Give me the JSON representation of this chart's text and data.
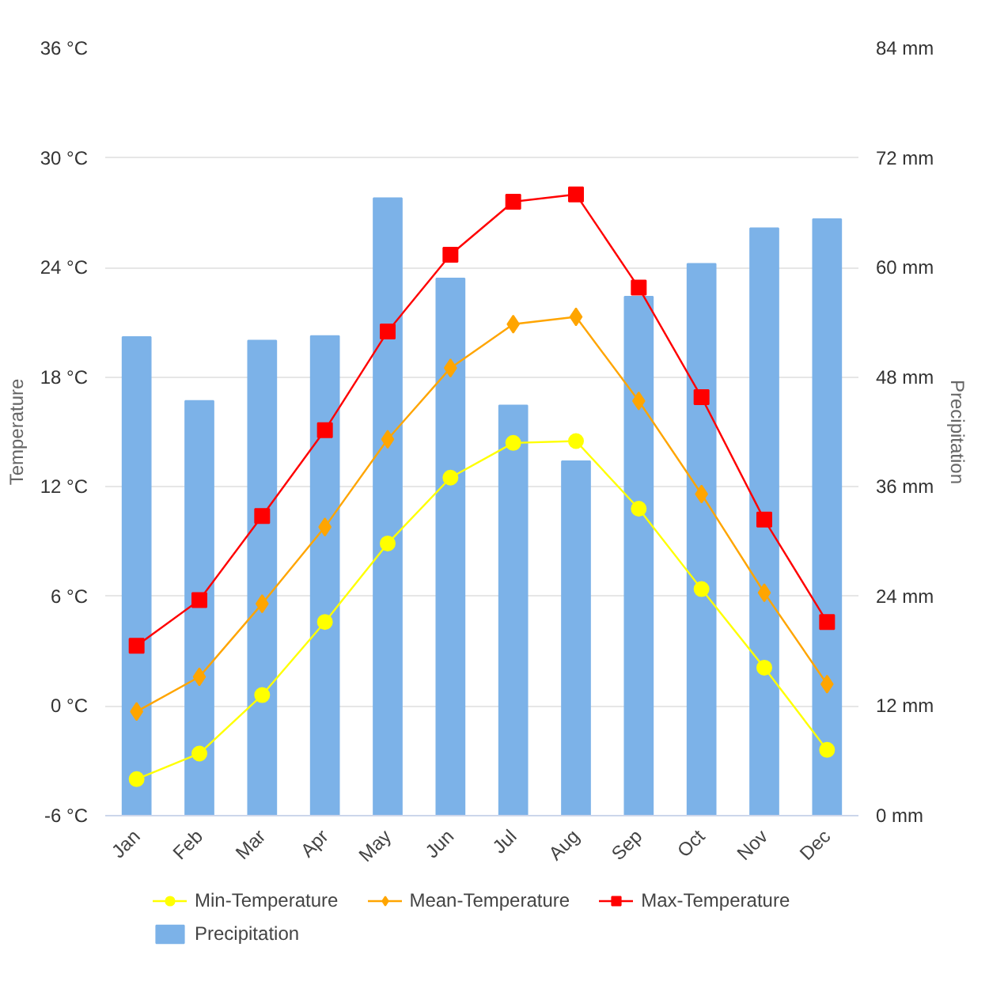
{
  "chart_data": {
    "type": "line",
    "categories": [
      "Jan",
      "Feb",
      "Mar",
      "Apr",
      "May",
      "Jun",
      "Jul",
      "Aug",
      "Sep",
      "Oct",
      "Nov",
      "Dec"
    ],
    "ylabel": "Temperature",
    "y2label": "Precipitation",
    "ylim": [
      -6,
      36
    ],
    "yticks": [
      {
        "value": -6,
        "label": "-6 °C"
      },
      {
        "value": 0,
        "label": "0 °C"
      },
      {
        "value": 6,
        "label": "6 °C"
      },
      {
        "value": 12,
        "label": "12 °C"
      },
      {
        "value": 18,
        "label": "18 °C"
      },
      {
        "value": 24,
        "label": "24 °C"
      },
      {
        "value": 30,
        "label": "30 °C"
      },
      {
        "value": 36,
        "label": "36 °C"
      }
    ],
    "y2lim": [
      0,
      84
    ],
    "y2ticks": [
      {
        "value": 0,
        "label": "0 mm"
      },
      {
        "value": 12,
        "label": "12 mm"
      },
      {
        "value": 24,
        "label": "24 mm"
      },
      {
        "value": 36,
        "label": "36 mm"
      },
      {
        "value": 48,
        "label": "48 mm"
      },
      {
        "value": 60,
        "label": "60 mm"
      },
      {
        "value": 72,
        "label": "72 mm"
      },
      {
        "value": 84,
        "label": "84 mm"
      }
    ],
    "grid": "y",
    "legend": "bottom",
    "line_style": "solid",
    "series": [
      {
        "name": "Precipitation",
        "type": "bar",
        "axis": "y2",
        "color": "#7cb2e8",
        "values": [
          52.4,
          45.4,
          52.0,
          52.5,
          67.6,
          58.8,
          44.9,
          38.8,
          56.8,
          60.4,
          64.3,
          65.3
        ]
      },
      {
        "name": "Min-Temperature",
        "marker": "circle",
        "color": "#ffff00",
        "values": [
          -4.0,
          -2.6,
          0.6,
          4.6,
          8.9,
          12.5,
          14.4,
          14.5,
          10.8,
          6.4,
          2.1,
          -2.4
        ]
      },
      {
        "name": "Mean-Temperature",
        "marker": "diamond",
        "color": "#ffa500",
        "values": [
          -0.3,
          1.6,
          5.6,
          9.8,
          14.6,
          18.5,
          20.9,
          21.3,
          16.7,
          11.6,
          6.2,
          1.2
        ]
      },
      {
        "name": "Max-Temperature",
        "marker": "square",
        "color": "#ff0000",
        "values": [
          3.3,
          5.8,
          10.4,
          15.1,
          20.5,
          24.7,
          27.6,
          28.0,
          22.9,
          16.9,
          10.2,
          4.6
        ]
      }
    ]
  }
}
